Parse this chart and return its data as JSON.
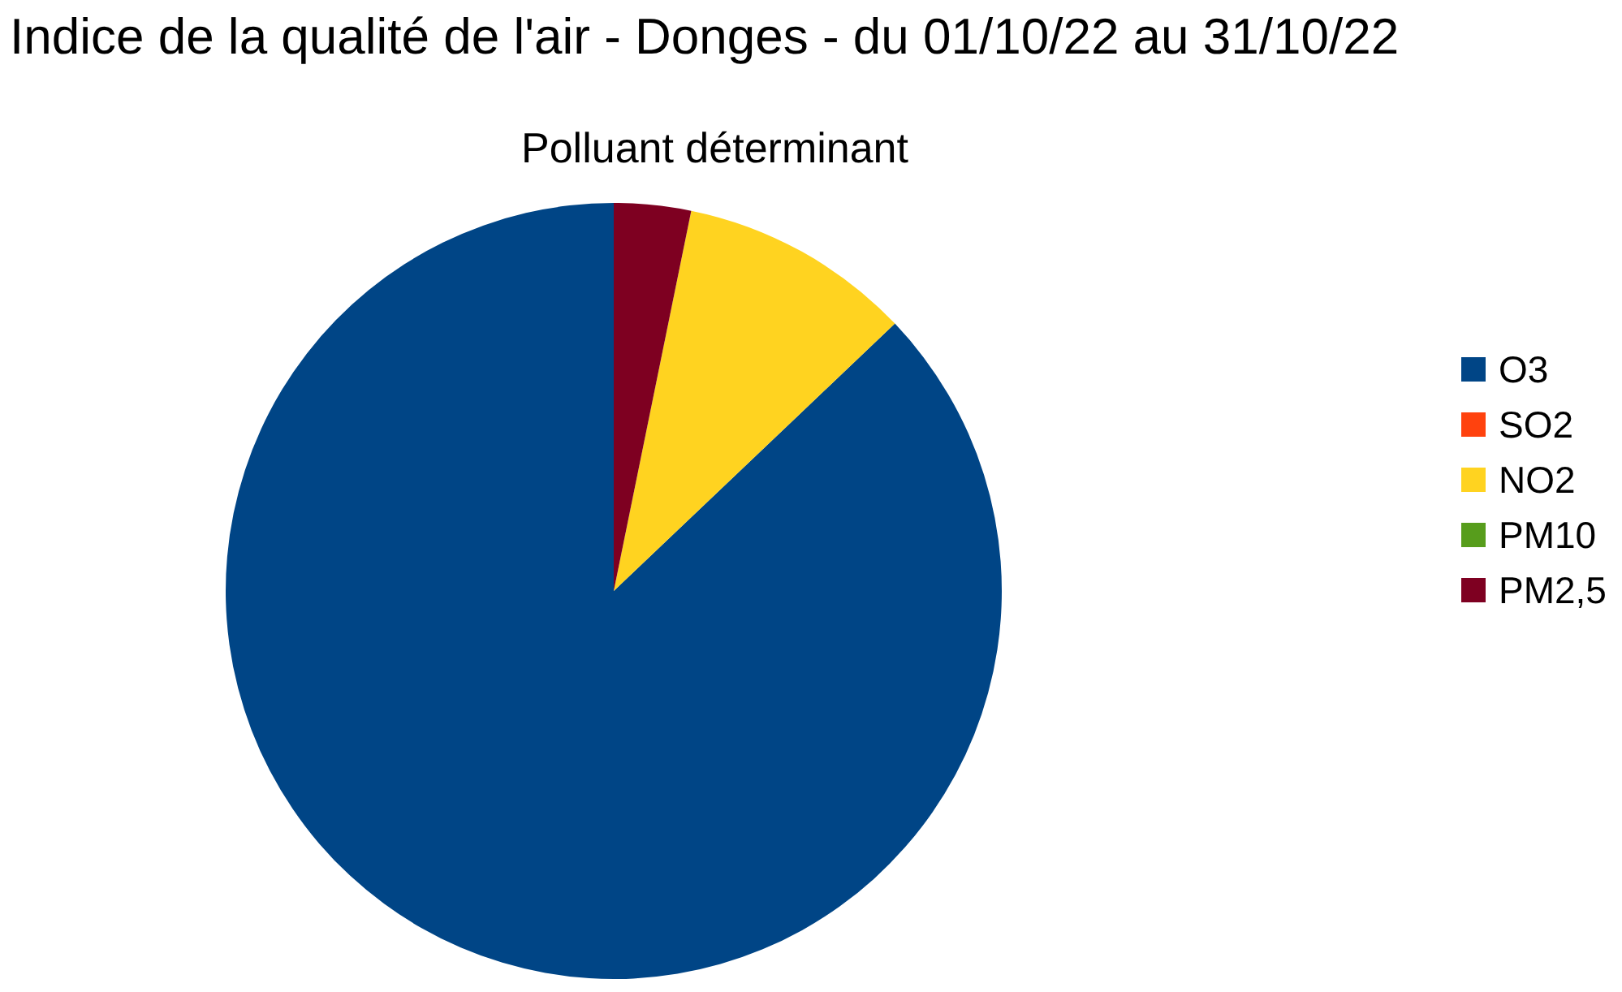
{
  "chart_data": {
    "type": "pie",
    "title": "Indice de la qualité de l'air - Donges - du 01/10/22 au 31/10/22",
    "subtitle": "Polluant déterminant",
    "categories": [
      "O3",
      "SO2",
      "NO2",
      "PM10",
      "PM2,5"
    ],
    "values": [
      87.1,
      0,
      9.7,
      0,
      3.2
    ],
    "colors": [
      "#004586",
      "#ff420e",
      "#ffd320",
      "#579d1c",
      "#7e0021"
    ],
    "legend": "right"
  }
}
